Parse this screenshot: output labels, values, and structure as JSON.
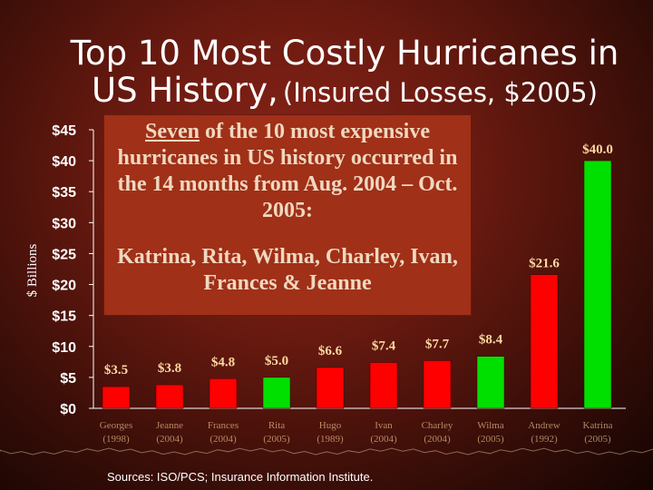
{
  "title": {
    "line1": "Top 10 Most Costly Hurricanes in",
    "line2_main": "US History,",
    "line2_sub": "(Insured Losses, $2005)"
  },
  "callout": {
    "emphasis": "Seven",
    "text1": " of the 10 most expensive hurricanes in US history occurred in the 14 months from Aug. 2004 – Oct. 2005:",
    "text2": "Katrina, Rita, Wilma, Charley, Ivan, Frances & Jeanne"
  },
  "source": "Sources: ISO/PCS; Insurance Information Institute.",
  "colors": {
    "red": "#ff0000",
    "green": "#00e000",
    "label": "#ffd8a0",
    "axis": "#ffffff"
  },
  "chart_data": {
    "type": "bar",
    "ylabel": "$ Billions",
    "ylim": [
      0,
      45
    ],
    "yticks": [
      {
        "value": 0,
        "label": "$0"
      },
      {
        "value": 5,
        "label": "$5"
      },
      {
        "value": 10,
        "label": "$10"
      },
      {
        "value": 15,
        "label": "$15"
      },
      {
        "value": 20,
        "label": "$20"
      },
      {
        "value": 25,
        "label": "$25"
      },
      {
        "value": 30,
        "label": "$30"
      },
      {
        "value": 35,
        "label": "$35"
      },
      {
        "value": 40,
        "label": "$40"
      },
      {
        "value": 45,
        "label": "$45"
      }
    ],
    "bars": [
      {
        "name": "Georges",
        "year": "(1998)",
        "value": 3.5,
        "label": "$3.5",
        "color": "red"
      },
      {
        "name": "Jeanne",
        "year": "(2004)",
        "value": 3.8,
        "label": "$3.8",
        "color": "red"
      },
      {
        "name": "Frances",
        "year": "(2004)",
        "value": 4.8,
        "label": "$4.8",
        "color": "red"
      },
      {
        "name": "Rita",
        "year": "(2005)",
        "value": 5.0,
        "label": "$5.0",
        "color": "green"
      },
      {
        "name": "Hugo",
        "year": "(1989)",
        "value": 6.6,
        "label": "$6.6",
        "color": "red"
      },
      {
        "name": "Ivan",
        "year": "(2004)",
        "value": 7.4,
        "label": "$7.4",
        "color": "red"
      },
      {
        "name": "Charley",
        "year": "(2004)",
        "value": 7.7,
        "label": "$7.7",
        "color": "red"
      },
      {
        "name": "Wilma",
        "year": "(2005)",
        "value": 8.4,
        "label": "$8.4",
        "color": "green"
      },
      {
        "name": "Andrew",
        "year": "(1992)",
        "value": 21.6,
        "label": "$21.6",
        "color": "red"
      },
      {
        "name": "Katrina",
        "year": "(2005)",
        "value": 40.0,
        "label": "$40.0",
        "color": "green"
      }
    ]
  }
}
